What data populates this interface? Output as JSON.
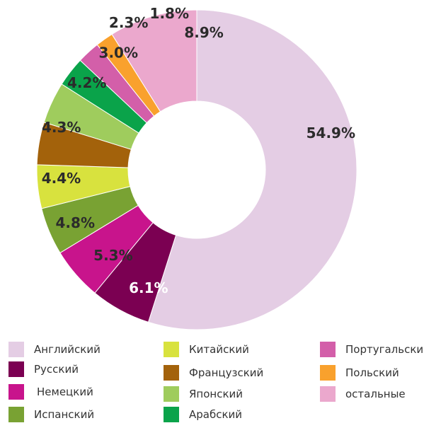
{
  "chart_data": {
    "type": "pie",
    "variant": "donut",
    "title": "",
    "categories": [
      "Английский",
      "Русский",
      "Немецкий",
      "Испанский",
      "Китайский",
      "Французский",
      "Японский",
      "Арабский",
      "Португальский",
      "Польский",
      "остальные"
    ],
    "values": [
      54.9,
      6.1,
      5.3,
      4.8,
      4.4,
      4.3,
      4.2,
      3.0,
      2.3,
      1.8,
      8.9
    ],
    "labels": [
      "54.9%",
      "6.1%",
      "5.3%",
      "4.8%",
      "4.4%",
      "4.3%",
      "4.2%",
      "3.0%",
      "2.3%",
      "1.8%",
      "8.9%"
    ],
    "colors": [
      "#e4cde4",
      "#7b0052",
      "#c8148c",
      "#79a233",
      "#d8e23e",
      "#a3620b",
      "#9fcc5d",
      "#0aa34a",
      "#d35fa9",
      "#f9a12d",
      "#eba8cd"
    ],
    "legend_position": "bottom",
    "legend_order": [
      [
        "Английский",
        "Русский",
        "Немецкий",
        "Испанский"
      ],
      [
        "Китайский",
        "Французский",
        "Японский",
        "Арабский"
      ],
      [
        "Португальский",
        "Польский",
        "остальные"
      ]
    ]
  },
  "legend": {
    "items": [
      {
        "label": "Английский",
        "color": "#e4cde4"
      },
      {
        "label": "Русский",
        "color": "#7b0052"
      },
      {
        "label": "Немецкий",
        "color": "#c8148c"
      },
      {
        "label": "Испанский",
        "color": "#79a233"
      },
      {
        "label": "Китайский",
        "color": "#d8e23e"
      },
      {
        "label": "Французский",
        "color": "#a3620b"
      },
      {
        "label": "Японский",
        "color": "#9fcc5d"
      },
      {
        "label": "Арабский",
        "color": "#0aa34a"
      },
      {
        "label": "Португальский",
        "color": "#d35fa9"
      },
      {
        "label": "Польский",
        "color": "#f9a12d"
      },
      {
        "label": "остальные",
        "color": "#eba8cd"
      }
    ]
  }
}
